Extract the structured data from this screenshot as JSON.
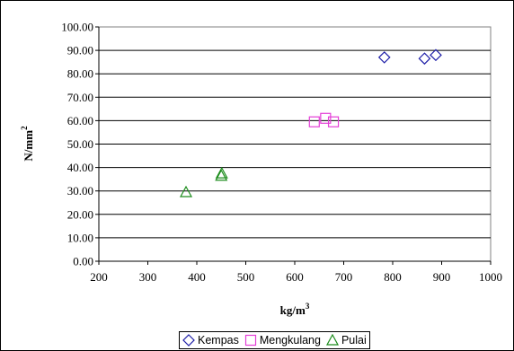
{
  "chart_data": {
    "type": "scatter",
    "title": "",
    "xlabel": "kg/m",
    "xlabel_sup": "3",
    "ylabel": "N/mm",
    "ylabel_sup": "2",
    "xlim": [
      200,
      1000
    ],
    "ylim": [
      0,
      100
    ],
    "x_ticks": [
      "200",
      "300",
      "400",
      "500",
      "600",
      "700",
      "800",
      "900",
      "1000"
    ],
    "y_ticks": [
      "0.00",
      "10.00",
      "20.00",
      "30.00",
      "40.00",
      "50.00",
      "60.00",
      "70.00",
      "80.00",
      "90.00",
      "100.00"
    ],
    "grid": "horizontal",
    "legend_position": "bottom",
    "series": [
      {
        "name": "Kempas",
        "marker": "diamond",
        "color": "#1f1fa8",
        "points": [
          [
            783,
            87.0
          ],
          [
            865,
            86.5
          ],
          [
            888,
            88.0
          ]
        ]
      },
      {
        "name": "Mengkulang",
        "marker": "square",
        "color": "#e43fd7",
        "points": [
          [
            640,
            59.5
          ],
          [
            663,
            61.0
          ],
          [
            679,
            59.5
          ]
        ]
      },
      {
        "name": "Pulai",
        "marker": "triangle",
        "color": "#1c8c1c",
        "points": [
          [
            378,
            29.5
          ],
          [
            450,
            36.5
          ],
          [
            451,
            37.5
          ]
        ]
      }
    ]
  }
}
